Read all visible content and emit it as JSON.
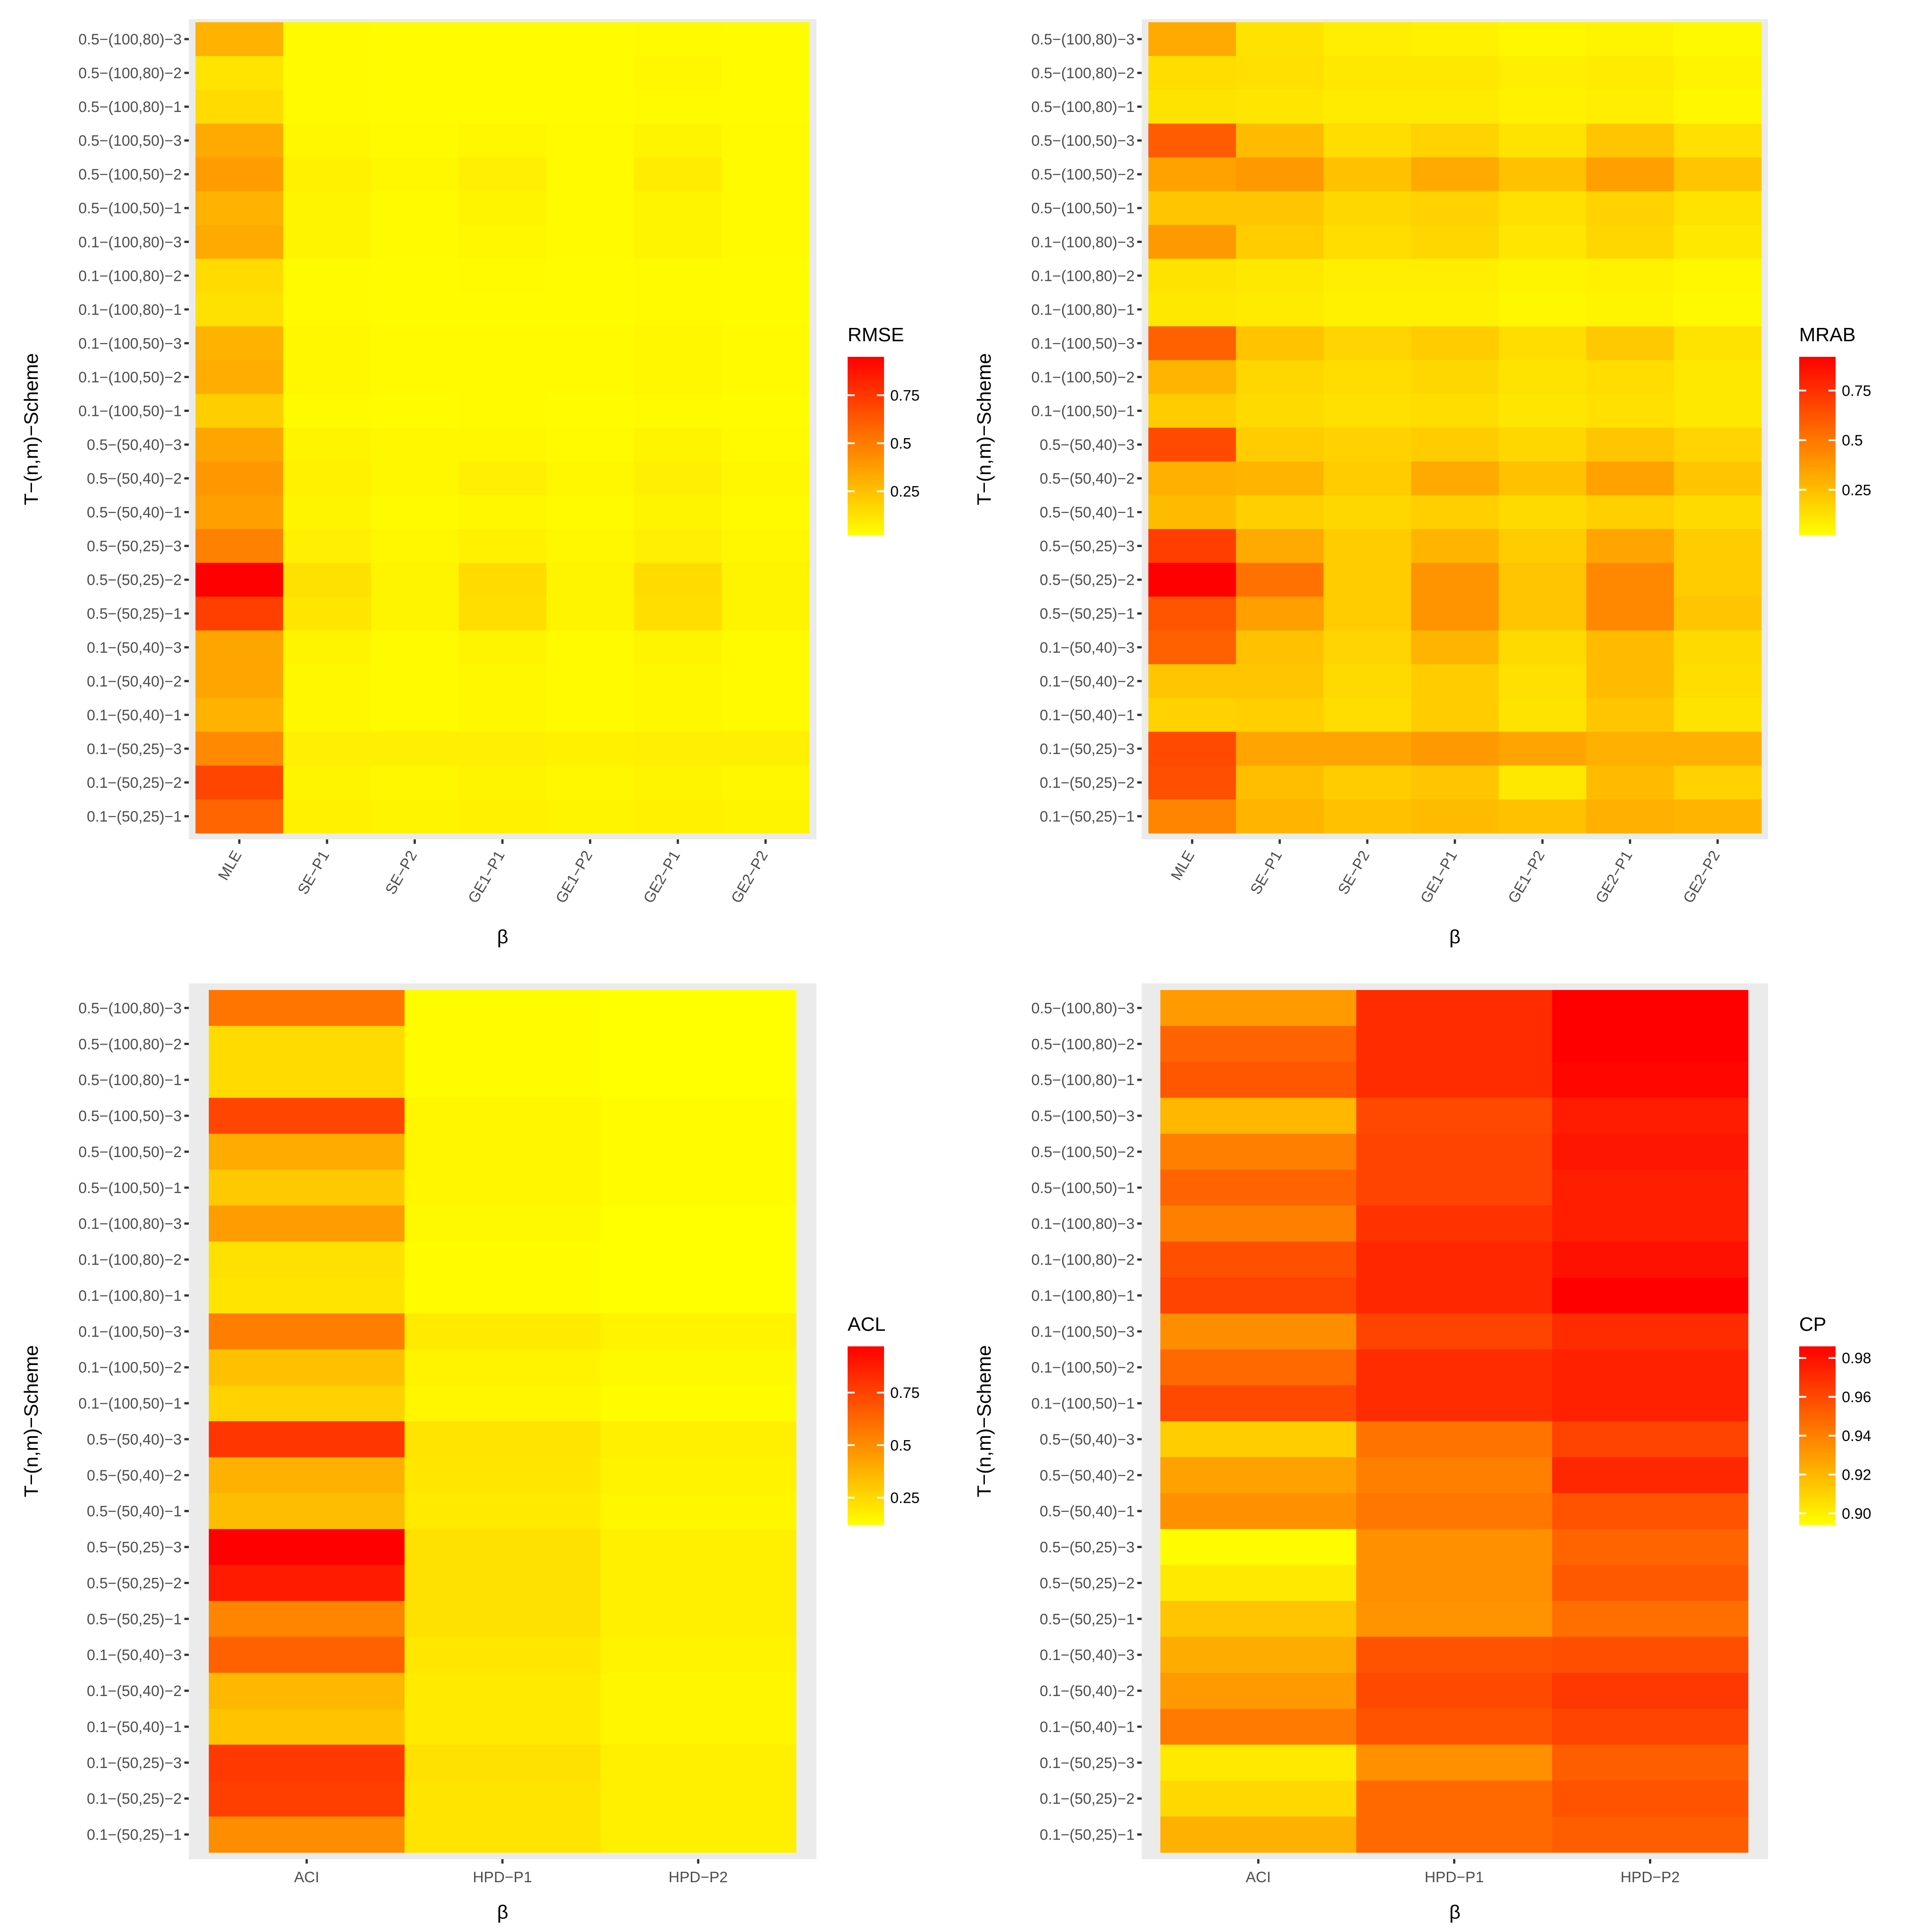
{
  "figure": {
    "title": ""
  },
  "chart_data": [
    {
      "type": "heatmap",
      "xlabel": "β",
      "ylabel": "T−(n,m)−Scheme",
      "x_categories": [
        "MLE",
        "SE−P1",
        "SE−P2",
        "GE1−P1",
        "GE1−P2",
        "GE2−P1",
        "GE2−P2"
      ],
      "y_categories": [
        "0.5−(100,80)−3",
        "0.5−(100,80)−2",
        "0.5−(100,80)−1",
        "0.5−(100,50)−3",
        "0.5−(100,50)−2",
        "0.5−(100,50)−1",
        "0.1−(100,80)−3",
        "0.1−(100,80)−2",
        "0.1−(100,80)−1",
        "0.1−(100,50)−3",
        "0.1−(100,50)−2",
        "0.1−(100,50)−1",
        "0.5−(50,40)−3",
        "0.5−(50,40)−2",
        "0.5−(50,40)−1",
        "0.5−(50,25)−3",
        "0.5−(50,25)−2",
        "0.5−(50,25)−1",
        "0.1−(50,40)−3",
        "0.1−(50,40)−2",
        "0.1−(50,40)−1",
        "0.1−(50,25)−3",
        "0.1−(50,25)−2",
        "0.1−(50,25)−1"
      ],
      "legend": {
        "title": "RMSE",
        "ticks": [
          0.25,
          0.5,
          0.75
        ],
        "min": 0.02,
        "max": 0.95,
        "position": "right"
      },
      "values": [
        [
          0.3,
          0.04,
          0.03,
          0.03,
          0.03,
          0.04,
          0.03
        ],
        [
          0.12,
          0.04,
          0.03,
          0.03,
          0.03,
          0.05,
          0.03
        ],
        [
          0.15,
          0.04,
          0.03,
          0.03,
          0.03,
          0.04,
          0.03
        ],
        [
          0.33,
          0.05,
          0.04,
          0.05,
          0.04,
          0.06,
          0.04
        ],
        [
          0.38,
          0.07,
          0.05,
          0.08,
          0.04,
          0.09,
          0.04
        ],
        [
          0.3,
          0.06,
          0.04,
          0.06,
          0.04,
          0.06,
          0.04
        ],
        [
          0.33,
          0.06,
          0.04,
          0.05,
          0.04,
          0.06,
          0.04
        ],
        [
          0.15,
          0.04,
          0.03,
          0.04,
          0.03,
          0.04,
          0.03
        ],
        [
          0.13,
          0.04,
          0.03,
          0.03,
          0.03,
          0.04,
          0.03
        ],
        [
          0.3,
          0.05,
          0.04,
          0.04,
          0.04,
          0.05,
          0.04
        ],
        [
          0.32,
          0.05,
          0.04,
          0.04,
          0.04,
          0.05,
          0.04
        ],
        [
          0.2,
          0.04,
          0.03,
          0.04,
          0.03,
          0.04,
          0.03
        ],
        [
          0.35,
          0.06,
          0.05,
          0.05,
          0.04,
          0.06,
          0.04
        ],
        [
          0.4,
          0.07,
          0.05,
          0.08,
          0.05,
          0.08,
          0.05
        ],
        [
          0.37,
          0.06,
          0.04,
          0.05,
          0.04,
          0.06,
          0.04
        ],
        [
          0.48,
          0.08,
          0.05,
          0.07,
          0.05,
          0.08,
          0.05
        ],
        [
          0.95,
          0.13,
          0.06,
          0.15,
          0.06,
          0.15,
          0.06
        ],
        [
          0.72,
          0.11,
          0.06,
          0.14,
          0.06,
          0.14,
          0.06
        ],
        [
          0.35,
          0.06,
          0.04,
          0.06,
          0.04,
          0.06,
          0.04
        ],
        [
          0.35,
          0.05,
          0.04,
          0.05,
          0.04,
          0.05,
          0.04
        ],
        [
          0.3,
          0.05,
          0.04,
          0.05,
          0.04,
          0.05,
          0.04
        ],
        [
          0.45,
          0.08,
          0.08,
          0.08,
          0.07,
          0.08,
          0.08
        ],
        [
          0.7,
          0.06,
          0.05,
          0.06,
          0.05,
          0.06,
          0.05
        ],
        [
          0.58,
          0.07,
          0.06,
          0.07,
          0.06,
          0.07,
          0.06
        ]
      ]
    },
    {
      "type": "heatmap",
      "xlabel": "β",
      "ylabel": "T−(n,m)−Scheme",
      "x_categories": [
        "MLE",
        "SE−P1",
        "SE−P2",
        "GE1−P1",
        "GE1−P2",
        "GE2−P1",
        "GE2−P2"
      ],
      "y_categories": [
        "0.5−(100,80)−3",
        "0.5−(100,80)−2",
        "0.5−(100,80)−1",
        "0.5−(100,50)−3",
        "0.5−(100,50)−2",
        "0.5−(100,50)−1",
        "0.1−(100,80)−3",
        "0.1−(100,80)−2",
        "0.1−(100,80)−1",
        "0.1−(100,50)−3",
        "0.1−(100,50)−2",
        "0.1−(100,50)−1",
        "0.5−(50,40)−3",
        "0.5−(50,40)−2",
        "0.5−(50,40)−1",
        "0.5−(50,25)−3",
        "0.5−(50,25)−2",
        "0.5−(50,25)−1",
        "0.1−(50,40)−3",
        "0.1−(50,40)−2",
        "0.1−(50,40)−1",
        "0.1−(50,25)−3",
        "0.1−(50,25)−2",
        "0.1−(50,25)−1"
      ],
      "legend": {
        "title": "MRAB",
        "ticks": [
          0.25,
          0.5,
          0.75
        ],
        "min": 0.02,
        "max": 0.92,
        "position": "right"
      },
      "values": [
        [
          0.32,
          0.12,
          0.08,
          0.07,
          0.05,
          0.06,
          0.04
        ],
        [
          0.14,
          0.13,
          0.1,
          0.1,
          0.08,
          0.09,
          0.06
        ],
        [
          0.12,
          0.11,
          0.09,
          0.09,
          0.07,
          0.08,
          0.05
        ],
        [
          0.6,
          0.26,
          0.14,
          0.18,
          0.12,
          0.22,
          0.13
        ],
        [
          0.35,
          0.38,
          0.24,
          0.32,
          0.24,
          0.36,
          0.22
        ],
        [
          0.22,
          0.22,
          0.16,
          0.18,
          0.13,
          0.18,
          0.12
        ],
        [
          0.38,
          0.2,
          0.14,
          0.16,
          0.11,
          0.16,
          0.1
        ],
        [
          0.12,
          0.1,
          0.08,
          0.08,
          0.06,
          0.07,
          0.05
        ],
        [
          0.1,
          0.09,
          0.07,
          0.07,
          0.05,
          0.06,
          0.04
        ],
        [
          0.58,
          0.23,
          0.17,
          0.2,
          0.14,
          0.21,
          0.12
        ],
        [
          0.28,
          0.16,
          0.14,
          0.16,
          0.12,
          0.14,
          0.1
        ],
        [
          0.2,
          0.15,
          0.13,
          0.14,
          0.11,
          0.13,
          0.1
        ],
        [
          0.66,
          0.2,
          0.18,
          0.2,
          0.16,
          0.22,
          0.17
        ],
        [
          0.3,
          0.28,
          0.2,
          0.32,
          0.24,
          0.35,
          0.22
        ],
        [
          0.26,
          0.19,
          0.16,
          0.19,
          0.15,
          0.19,
          0.15
        ],
        [
          0.7,
          0.32,
          0.2,
          0.28,
          0.2,
          0.34,
          0.2
        ],
        [
          0.92,
          0.52,
          0.2,
          0.4,
          0.22,
          0.44,
          0.2
        ],
        [
          0.62,
          0.36,
          0.2,
          0.4,
          0.22,
          0.44,
          0.22
        ],
        [
          0.58,
          0.24,
          0.17,
          0.28,
          0.15,
          0.26,
          0.15
        ],
        [
          0.22,
          0.22,
          0.15,
          0.2,
          0.13,
          0.26,
          0.14
        ],
        [
          0.18,
          0.19,
          0.14,
          0.2,
          0.12,
          0.22,
          0.12
        ],
        [
          0.66,
          0.34,
          0.34,
          0.38,
          0.34,
          0.3,
          0.3
        ],
        [
          0.64,
          0.25,
          0.2,
          0.22,
          0.1,
          0.26,
          0.18
        ],
        [
          0.45,
          0.28,
          0.24,
          0.26,
          0.24,
          0.3,
          0.28
        ]
      ]
    },
    {
      "type": "heatmap",
      "xlabel": "β",
      "ylabel": "T−(n,m)−Scheme",
      "x_categories": [
        "ACI",
        "HPD−P1",
        "HPD−P2"
      ],
      "y_categories": [
        "0.5−(100,80)−3",
        "0.5−(100,80)−2",
        "0.5−(100,80)−1",
        "0.5−(100,50)−3",
        "0.5−(100,50)−2",
        "0.5−(100,50)−1",
        "0.1−(100,80)−3",
        "0.1−(100,80)−2",
        "0.1−(100,80)−1",
        "0.1−(100,50)−3",
        "0.1−(100,50)−2",
        "0.1−(100,50)−1",
        "0.5−(50,40)−3",
        "0.5−(50,40)−2",
        "0.5−(50,40)−1",
        "0.5−(50,25)−3",
        "0.5−(50,25)−2",
        "0.5−(50,25)−1",
        "0.1−(50,40)−3",
        "0.1−(50,40)−2",
        "0.1−(50,40)−1",
        "0.1−(50,25)−3",
        "0.1−(50,25)−2",
        "0.1−(50,25)−1"
      ],
      "legend": {
        "title": "ACL",
        "ticks": [
          0.25,
          0.5,
          0.75
        ],
        "min": 0.12,
        "max": 0.97,
        "position": "right"
      },
      "values": [
        [
          0.58,
          0.13,
          0.12
        ],
        [
          0.24,
          0.13,
          0.12
        ],
        [
          0.24,
          0.13,
          0.12
        ],
        [
          0.74,
          0.15,
          0.13
        ],
        [
          0.4,
          0.15,
          0.13
        ],
        [
          0.3,
          0.15,
          0.13
        ],
        [
          0.45,
          0.14,
          0.12
        ],
        [
          0.22,
          0.13,
          0.12
        ],
        [
          0.21,
          0.13,
          0.12
        ],
        [
          0.55,
          0.19,
          0.16
        ],
        [
          0.33,
          0.16,
          0.14
        ],
        [
          0.27,
          0.15,
          0.13
        ],
        [
          0.79,
          0.21,
          0.17
        ],
        [
          0.38,
          0.2,
          0.16
        ],
        [
          0.34,
          0.19,
          0.15
        ],
        [
          0.97,
          0.22,
          0.17
        ],
        [
          0.88,
          0.22,
          0.17
        ],
        [
          0.53,
          0.22,
          0.17
        ],
        [
          0.65,
          0.2,
          0.16
        ],
        [
          0.36,
          0.19,
          0.15
        ],
        [
          0.32,
          0.19,
          0.15
        ],
        [
          0.78,
          0.22,
          0.17
        ],
        [
          0.76,
          0.21,
          0.17
        ],
        [
          0.5,
          0.21,
          0.17
        ]
      ]
    },
    {
      "type": "heatmap",
      "xlabel": "β",
      "ylabel": "T−(n,m)−Scheme",
      "x_categories": [
        "ACI",
        "HPD−P1",
        "HPD−P2"
      ],
      "y_categories": [
        "0.5−(100,80)−3",
        "0.5−(100,80)−2",
        "0.5−(100,80)−1",
        "0.5−(100,50)−3",
        "0.5−(100,50)−2",
        "0.5−(100,50)−1",
        "0.1−(100,80)−3",
        "0.1−(100,80)−2",
        "0.1−(100,80)−1",
        "0.1−(100,50)−3",
        "0.1−(100,50)−2",
        "0.1−(100,50)−1",
        "0.5−(50,40)−3",
        "0.5−(50,40)−2",
        "0.5−(50,40)−1",
        "0.5−(50,25)−3",
        "0.5−(50,25)−2",
        "0.5−(50,25)−1",
        "0.1−(50,40)−3",
        "0.1−(50,40)−2",
        "0.1−(50,40)−1",
        "0.1−(50,25)−3",
        "0.1−(50,25)−2",
        "0.1−(50,25)−1"
      ],
      "legend": {
        "title": "CP",
        "ticks": [
          0.9,
          0.92,
          0.94,
          0.96,
          0.98
        ],
        "tick_labels": [
          "0.90",
          "0.92",
          "0.94",
          "0.96",
          "0.98"
        ],
        "min": 0.894,
        "max": 0.986,
        "position": "right"
      },
      "values": [
        [
          0.93,
          0.97,
          0.986
        ],
        [
          0.95,
          0.97,
          0.986
        ],
        [
          0.955,
          0.97,
          0.984
        ],
        [
          0.92,
          0.96,
          0.976
        ],
        [
          0.94,
          0.962,
          0.978
        ],
        [
          0.95,
          0.962,
          0.975
        ],
        [
          0.94,
          0.968,
          0.975
        ],
        [
          0.957,
          0.972,
          0.98
        ],
        [
          0.962,
          0.972,
          0.986
        ],
        [
          0.935,
          0.962,
          0.97
        ],
        [
          0.948,
          0.97,
          0.974
        ],
        [
          0.96,
          0.97,
          0.974
        ],
        [
          0.912,
          0.944,
          0.962
        ],
        [
          0.928,
          0.94,
          0.972
        ],
        [
          0.934,
          0.943,
          0.956
        ],
        [
          0.895,
          0.934,
          0.95
        ],
        [
          0.902,
          0.934,
          0.954
        ],
        [
          0.915,
          0.933,
          0.946
        ],
        [
          0.924,
          0.956,
          0.958
        ],
        [
          0.93,
          0.96,
          0.966
        ],
        [
          0.942,
          0.956,
          0.962
        ],
        [
          0.902,
          0.934,
          0.952
        ],
        [
          0.908,
          0.948,
          0.956
        ],
        [
          0.922,
          0.948,
          0.952
        ]
      ]
    }
  ]
}
